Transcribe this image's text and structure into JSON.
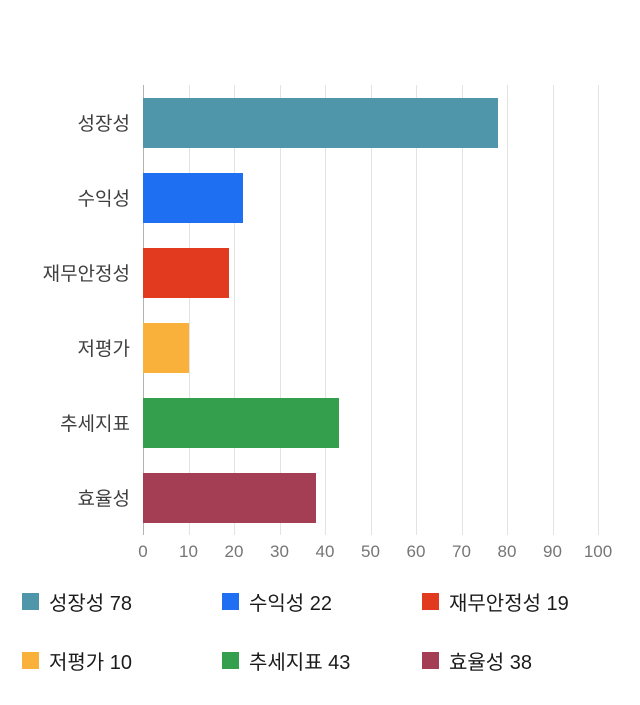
{
  "chart_data": {
    "type": "bar",
    "orientation": "horizontal",
    "title": "",
    "categories": [
      "성장성",
      "수익성",
      "재무안정성",
      "저평가",
      "추세지표",
      "효율성"
    ],
    "values": [
      78,
      22,
      19,
      10,
      43,
      38
    ],
    "colors": [
      "#4F96AB",
      "#1E6FF2",
      "#E23A1E",
      "#F9B13B",
      "#34A04E",
      "#A43E55"
    ],
    "xlim": [
      0,
      100
    ],
    "xticks": [
      0,
      10,
      20,
      30,
      40,
      50,
      60,
      70,
      80,
      90,
      100
    ],
    "grid": true,
    "grid_color": "#e3e3e3",
    "axis_line_color": "#b3b3b3",
    "legend_position": "bottom",
    "legend": [
      {
        "label": "성장성 78",
        "color": "#4F96AB"
      },
      {
        "label": "수익성 22",
        "color": "#1E6FF2"
      },
      {
        "label": "재무안정성 19",
        "color": "#E23A1E"
      },
      {
        "label": "저평가 10",
        "color": "#F9B13B"
      },
      {
        "label": "추세지표 43",
        "color": "#34A04E"
      },
      {
        "label": "효율성 38",
        "color": "#A43E55"
      }
    ]
  }
}
